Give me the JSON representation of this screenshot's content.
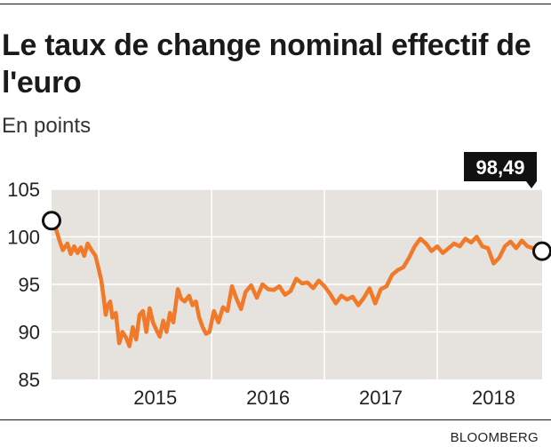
{
  "header": {
    "title": "Le taux de change nominal effectif de l'euro",
    "subtitle": "En points"
  },
  "footer": {
    "source": "BLOOMBERG"
  },
  "colors": {
    "line": "#f07a2a",
    "plot_bg": "#e6e3df",
    "grid": "#ffffff",
    "callout_bg": "#111111"
  },
  "chart_data": {
    "type": "line",
    "title": "Le taux de change nominal effectif de l'euro",
    "ylabel": "En points",
    "xlabel": "",
    "xlim": [
      2014.58,
      2018.93
    ],
    "ylim": [
      85,
      105
    ],
    "y_ticks": [
      "85",
      "90",
      "95",
      "100",
      "105"
    ],
    "x_ticks": [
      "2015",
      "2016",
      "2017",
      "2018"
    ],
    "grid": true,
    "callout": {
      "label": "98,49",
      "value": 98.49
    },
    "series": [
      {
        "x": [
          2014.58,
          2014.62,
          2014.65,
          2014.68,
          2014.72,
          2014.75,
          2014.78,
          2014.81,
          2014.84,
          2014.87,
          2014.9,
          2014.94,
          2014.97,
          2015.0,
          2015.02,
          2015.04,
          2015.06,
          2015.08,
          2015.1,
          2015.12,
          2015.15,
          2015.18,
          2015.21,
          2015.24,
          2015.27,
          2015.3,
          2015.33,
          2015.36,
          2015.39,
          2015.42,
          2015.45,
          2015.48,
          2015.51,
          2015.54,
          2015.57,
          2015.6,
          2015.63,
          2015.66,
          2015.7,
          2015.73,
          2015.76,
          2015.8,
          2015.83,
          2015.86,
          2015.89,
          2015.92,
          2015.95,
          2015.98,
          2016.02,
          2016.06,
          2016.1,
          2016.14,
          2016.18,
          2016.22,
          2016.26,
          2016.3,
          2016.35,
          2016.4,
          2016.45,
          2016.5,
          2016.55,
          2016.6,
          2016.65,
          2016.7,
          2016.75,
          2016.8,
          2016.85,
          2016.9,
          2016.95,
          2017.0,
          2017.05,
          2017.1,
          2017.15,
          2017.2,
          2017.25,
          2017.3,
          2017.35,
          2017.4,
          2017.45,
          2017.5,
          2017.55,
          2017.6,
          2017.65,
          2017.7,
          2017.75,
          2017.8,
          2017.85,
          2017.9,
          2017.95,
          2018.0,
          2018.05,
          2018.1,
          2018.15,
          2018.2,
          2018.25,
          2018.3,
          2018.35,
          2018.4,
          2018.45,
          2018.5,
          2018.55,
          2018.6,
          2018.65,
          2018.7,
          2018.75,
          2018.8,
          2018.85,
          2018.93
        ],
        "y": [
          101.7,
          100.8,
          99.6,
          98.6,
          99.3,
          98.2,
          99.0,
          98.3,
          98.9,
          98.0,
          99.3,
          98.5,
          98.0,
          96.5,
          95.5,
          93.8,
          91.8,
          92.8,
          93.2,
          91.5,
          92.0,
          88.8,
          90.0,
          89.4,
          88.5,
          90.5,
          89.2,
          91.8,
          92.2,
          90.0,
          92.5,
          91.0,
          90.2,
          89.5,
          91.2,
          90.0,
          92.0,
          91.0,
          94.5,
          93.5,
          93.2,
          93.8,
          92.8,
          93.2,
          91.5,
          90.5,
          89.8,
          90.0,
          92.2,
          91.0,
          92.6,
          92.2,
          94.8,
          93.5,
          92.4,
          94.2,
          94.9,
          93.6,
          95.0,
          94.5,
          94.4,
          94.8,
          93.9,
          94.3,
          95.6,
          95.1,
          95.2,
          94.6,
          95.4,
          94.8,
          94.0,
          93.0,
          93.8,
          93.4,
          93.7,
          92.8,
          93.6,
          94.6,
          93.0,
          94.5,
          94.8,
          96.0,
          96.5,
          96.8,
          97.8,
          99.0,
          99.8,
          99.3,
          98.5,
          99.0,
          98.3,
          98.8,
          99.3,
          99.0,
          99.8,
          99.4,
          100.0,
          99.0,
          98.8,
          97.2,
          97.8,
          99.0,
          99.5,
          98.8,
          99.6,
          99.0,
          98.8,
          98.49
        ]
      }
    ]
  }
}
